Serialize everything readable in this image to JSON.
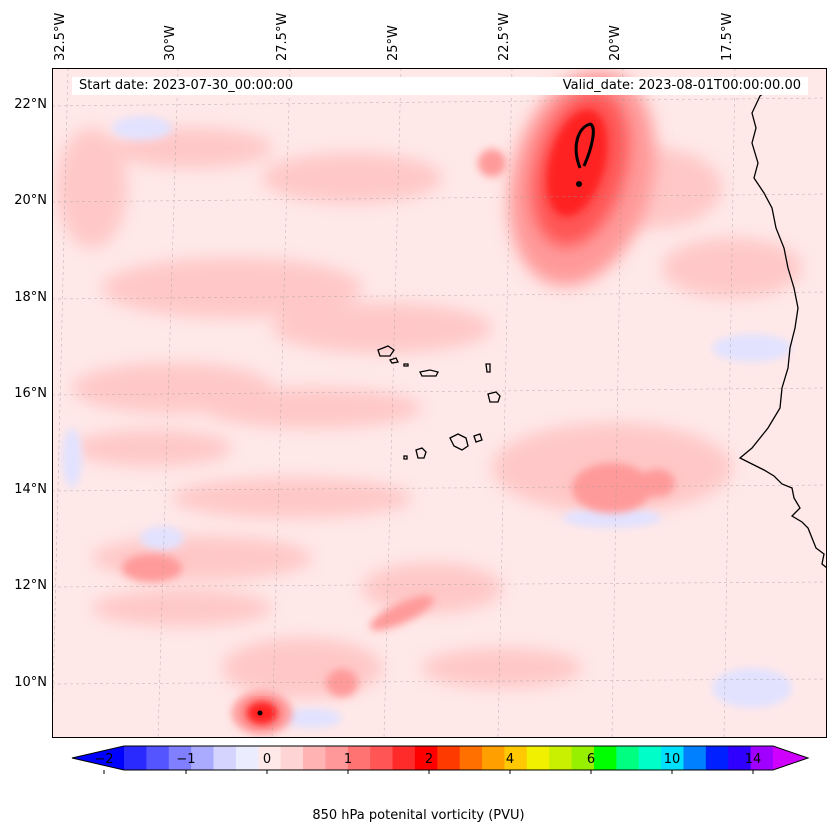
{
  "map": {
    "start_date": "Start date: 2023-07-30_00:00:00",
    "valid_date": "Valid_date: 2023-08-01T00:00:00.00",
    "lon_labels": [
      "32.5°W",
      "30°W",
      "27.5°W",
      "25°W",
      "22.5°W",
      "20°W",
      "17.5°W"
    ],
    "lat_labels": [
      "22°N",
      "20°N",
      "18°N",
      "16°N",
      "14°N",
      "12°N",
      "10°N"
    ],
    "field": "850 hPa potential vorticity",
    "region": "Eastern tropical Atlantic, Cape Verde Islands, West African coast",
    "colors": {
      "background_field": "#ffe8e8",
      "positive_strong": "#ff0000",
      "negative_weak": "#e8e8ff",
      "coastline": "#000000"
    }
  },
  "colorbar": {
    "tick_labels": [
      "−2",
      "−1",
      "0",
      "1",
      "2",
      "4",
      "6",
      "10",
      "14"
    ],
    "label": "850 hPa potenital vorticity (PVU)",
    "colors": [
      "#0000ff",
      "#2a2aff",
      "#5555ff",
      "#7f7fff",
      "#aaaaff",
      "#d4d4ff",
      "#ececff",
      "#ffe8e8",
      "#ffd4d4",
      "#ffb3b3",
      "#ff9999",
      "#ff7373",
      "#ff5555",
      "#ff2a2a",
      "#ff0000",
      "#ff3a00",
      "#ff7000",
      "#ffa000",
      "#ffc800",
      "#f0f000",
      "#c8f000",
      "#96f000",
      "#00ff00",
      "#00ff80",
      "#00ffc8",
      "#00e0ff",
      "#0080ff",
      "#0020ff",
      "#3000ff",
      "#a000ff",
      "#d000ff"
    ]
  }
}
